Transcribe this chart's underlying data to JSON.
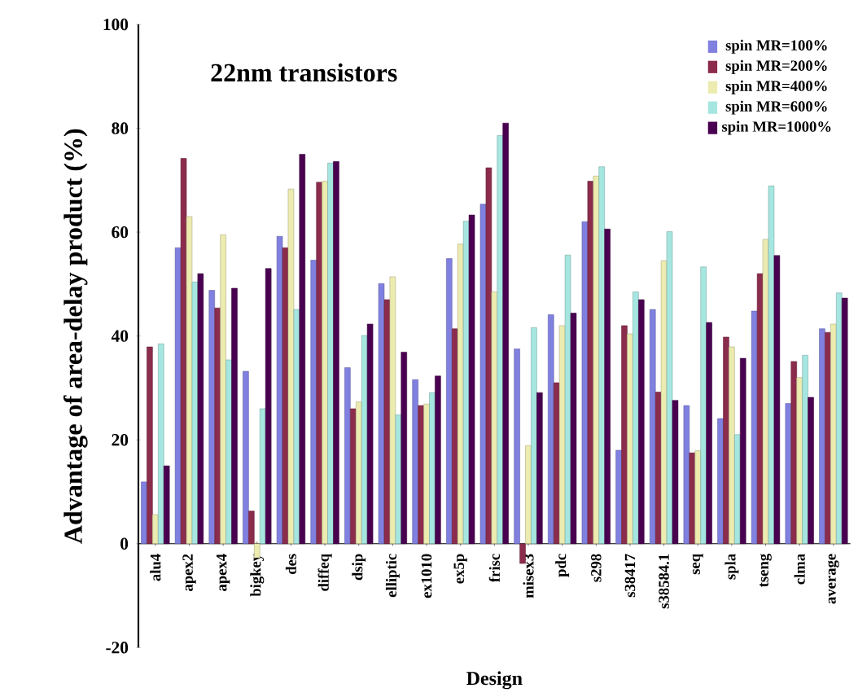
{
  "chart_data": {
    "type": "bar",
    "xlabel": "Design",
    "ylabel": "Advantage of area-delay product (%)",
    "annotations": [
      "22nm transistors"
    ],
    "categories": [
      "alu4",
      "apex2",
      "apex4",
      "bigkey",
      "des",
      "diffeq",
      "dsip",
      "elliptic",
      "ex1010",
      "ex5p",
      "frisc",
      "misex3",
      "pdc",
      "s298",
      "s38417",
      "s38584.1",
      "seq",
      "spla",
      "tseng",
      "clma",
      "average"
    ],
    "series": [
      {
        "name": "spin MR=100%",
        "color": "#8080e0",
        "values": [
          11.9,
          57,
          48.8,
          33.2,
          59.2,
          54.6,
          33.9,
          50.1,
          31.6,
          54.9,
          65.4,
          37.5,
          44.1,
          62,
          18,
          45.1,
          26.6,
          24.1,
          44.8,
          27,
          41.4
        ]
      },
      {
        "name": "spin MR=200%",
        "color": "#8b2c4d",
        "values": [
          37.9,
          74.2,
          45.4,
          6.3,
          57,
          69.6,
          26,
          47,
          26.6,
          41.4,
          72.4,
          -3.8,
          31,
          69.8,
          42,
          29.2,
          17.5,
          39.8,
          52,
          35.1,
          40.7
        ]
      },
      {
        "name": "spin MR=400%",
        "color": "#ecebb0",
        "values": [
          5.6,
          63,
          59.5,
          -2.7,
          68.3,
          69.8,
          27.3,
          51.4,
          26.9,
          57.7,
          48.5,
          18.9,
          42,
          70.8,
          40.4,
          54.5,
          17.9,
          37.9,
          58.6,
          32,
          42.3
        ]
      },
      {
        "name": "spin MR=600%",
        "color": "#a6e6e0",
        "values": [
          38.5,
          50.4,
          35.4,
          26,
          45.1,
          73.3,
          40.1,
          24.8,
          29.1,
          62.1,
          78.6,
          41.6,
          55.6,
          72.6,
          48.5,
          60.1,
          53.3,
          21,
          68.9,
          36.3,
          48.3
        ]
      },
      {
        "name": "spin MR=1000%",
        "color": "#4a0050",
        "values": [
          15,
          52,
          49.2,
          53,
          75,
          73.6,
          42.3,
          36.9,
          32.3,
          63.3,
          81,
          29.1,
          44.4,
          60.6,
          47,
          27.6,
          42.6,
          35.7,
          55.5,
          28.2,
          47.3
        ]
      }
    ],
    "ylim": [
      -20,
      100
    ],
    "yticks": [
      -20,
      0,
      20,
      40,
      60,
      80,
      100
    ],
    "legend": "top right"
  }
}
